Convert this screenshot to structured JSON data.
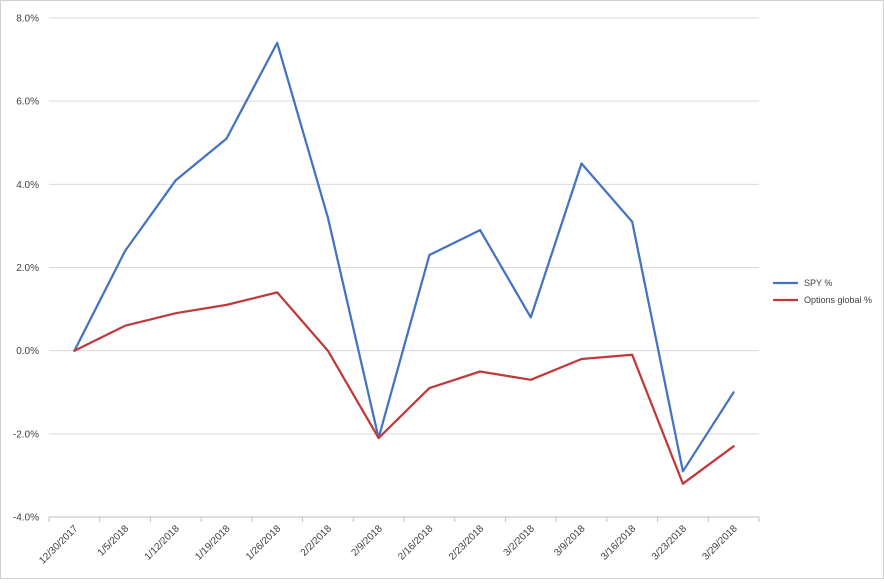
{
  "chart_data": {
    "type": "line",
    "categories": [
      "12/30/2017",
      "1/5/2018",
      "1/12/2018",
      "1/19/2018",
      "1/26/2018",
      "2/2/2018",
      "2/9/2018",
      "2/16/2018",
      "2/23/2018",
      "3/2/2018",
      "3/9/2018",
      "3/16/2018",
      "3/23/2018",
      "3/29/2018"
    ],
    "series": [
      {
        "name": "SPY %",
        "color": "#4472C4",
        "values": [
          0.0,
          2.4,
          4.1,
          5.1,
          7.4,
          3.2,
          -2.1,
          2.3,
          2.9,
          0.8,
          4.5,
          3.1,
          -2.9,
          -1.0
        ]
      },
      {
        "name": "Options global %",
        "color": "#C0393B",
        "values": [
          0.0,
          0.6,
          0.9,
          1.1,
          1.4,
          0.0,
          -2.1,
          -0.9,
          -0.5,
          -0.7,
          -0.2,
          -0.1,
          -3.2,
          -2.3
        ]
      }
    ],
    "ylim": [
      -4,
      8
    ],
    "yticks": [
      "8.0%",
      "6.0%",
      "4.0%",
      "2.0%",
      "0.0%",
      "-2.0%",
      "-4.0%"
    ],
    "grid": true,
    "legend": "right"
  }
}
